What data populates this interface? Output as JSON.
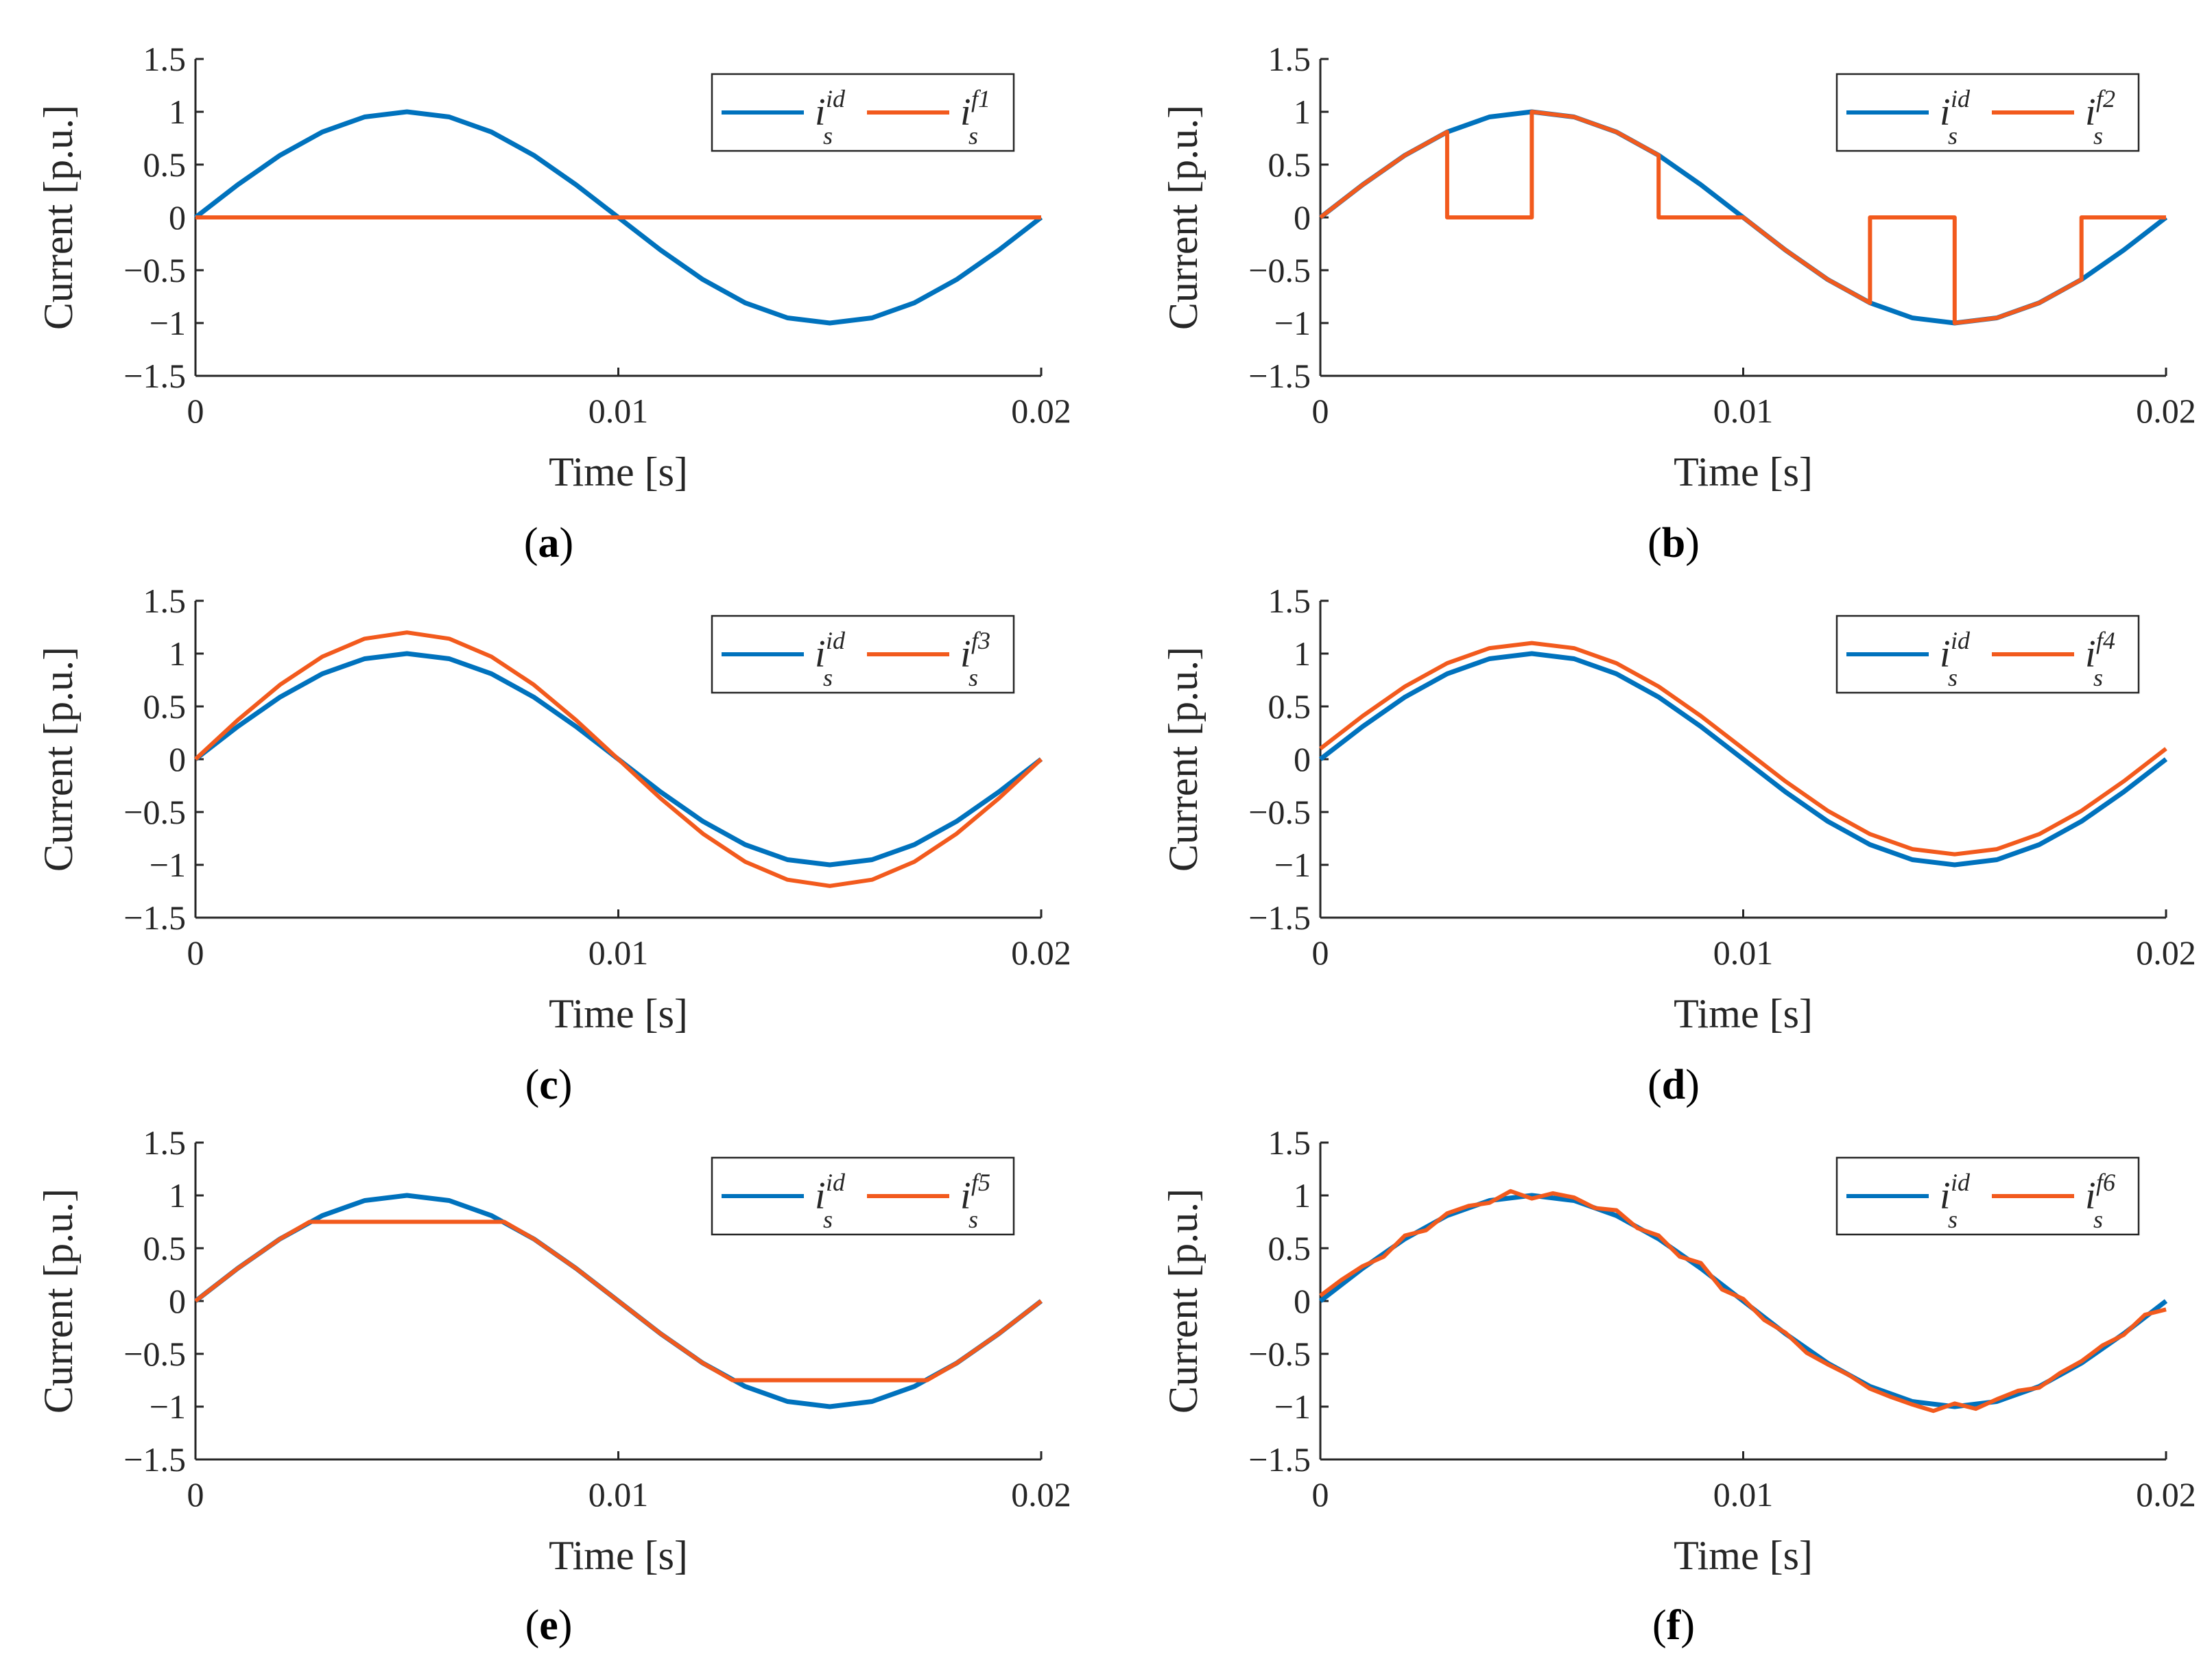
{
  "chart_data": [
    {
      "panel_label": "a",
      "type": "line",
      "xlabel": "Time [s]",
      "ylabel": "Current [p.u.]",
      "xlim": [
        0,
        0.02
      ],
      "ylim": [
        -1.5,
        1.5
      ],
      "xticks": [
        "0",
        "0.01",
        "0.02"
      ],
      "yticks": [
        "1.5",
        "1",
        "0.5",
        "0",
        "−0.5",
        "−1",
        "−1.5"
      ],
      "grid": false,
      "legend_position": "top-right",
      "colors": [
        "#0072BD",
        "#F25A1D"
      ],
      "series": [
        {
          "name": {
            "base": "i",
            "sub": "s",
            "sup": "id"
          },
          "x": [
            0,
            0.001,
            0.002,
            0.003,
            0.004,
            0.005,
            0.006,
            0.007,
            0.008,
            0.009,
            0.01,
            0.011,
            0.012,
            0.013,
            0.014,
            0.015,
            0.016,
            0.017,
            0.018,
            0.019,
            0.02
          ],
          "y": [
            0,
            0.309,
            0.588,
            0.809,
            0.951,
            1,
            0.951,
            0.809,
            0.588,
            0.309,
            0,
            -0.309,
            -0.588,
            -0.809,
            -0.951,
            -1,
            -0.951,
            -0.809,
            -0.588,
            -0.309,
            0
          ]
        },
        {
          "name": {
            "base": "i",
            "sub": "s",
            "sup": "f1"
          },
          "x": [
            0,
            0.02
          ],
          "y": [
            0,
            0
          ]
        }
      ]
    },
    {
      "panel_label": "b",
      "type": "line",
      "xlabel": "Time [s]",
      "ylabel": "Current [p.u.]",
      "xlim": [
        0,
        0.02
      ],
      "ylim": [
        -1.5,
        1.5
      ],
      "xticks": [
        "0",
        "0.01",
        "0.02"
      ],
      "yticks": [
        "1.5",
        "1",
        "0.5",
        "0",
        "−0.5",
        "−1",
        "−1.5"
      ],
      "grid": false,
      "legend_position": "top-right",
      "colors": [
        "#0072BD",
        "#F25A1D"
      ],
      "series": [
        {
          "name": {
            "base": "i",
            "sub": "s",
            "sup": "id"
          },
          "x": [
            0,
            0.001,
            0.002,
            0.003,
            0.004,
            0.005,
            0.006,
            0.007,
            0.008,
            0.009,
            0.01,
            0.011,
            0.012,
            0.013,
            0.014,
            0.015,
            0.016,
            0.017,
            0.018,
            0.019,
            0.02
          ],
          "y": [
            0,
            0.309,
            0.588,
            0.809,
            0.951,
            1,
            0.951,
            0.809,
            0.588,
            0.309,
            0,
            -0.309,
            -0.588,
            -0.809,
            -0.951,
            -1,
            -0.951,
            -0.809,
            -0.588,
            -0.309,
            0
          ]
        },
        {
          "name": {
            "base": "i",
            "sub": "s",
            "sup": "f2"
          },
          "x": [
            0,
            0.001,
            0.002,
            0.003,
            0.003,
            0.005,
            0.005,
            0.006,
            0.007,
            0.008,
            0.008,
            0.01,
            0.011,
            0.012,
            0.013,
            0.013,
            0.015,
            0.015,
            0.016,
            0.017,
            0.018,
            0.018,
            0.02
          ],
          "y": [
            0,
            0.309,
            0.588,
            0.809,
            0,
            0,
            1,
            0.951,
            0.809,
            0.588,
            0,
            0,
            -0.309,
            -0.588,
            -0.809,
            0,
            0,
            -1,
            -0.951,
            -0.809,
            -0.588,
            0,
            0
          ]
        }
      ]
    },
    {
      "panel_label": "c",
      "type": "line",
      "xlabel": "Time [s]",
      "ylabel": "Current [p.u.]",
      "xlim": [
        0,
        0.02
      ],
      "ylim": [
        -1.5,
        1.5
      ],
      "xticks": [
        "0",
        "0.01",
        "0.02"
      ],
      "yticks": [
        "1.5",
        "1",
        "0.5",
        "0",
        "−0.5",
        "−1",
        "−1.5"
      ],
      "grid": false,
      "legend_position": "top-right",
      "colors": [
        "#0072BD",
        "#F25A1D"
      ],
      "series": [
        {
          "name": {
            "base": "i",
            "sub": "s",
            "sup": "id"
          },
          "x": [
            0,
            0.001,
            0.002,
            0.003,
            0.004,
            0.005,
            0.006,
            0.007,
            0.008,
            0.009,
            0.01,
            0.011,
            0.012,
            0.013,
            0.014,
            0.015,
            0.016,
            0.017,
            0.018,
            0.019,
            0.02
          ],
          "y": [
            0,
            0.309,
            0.588,
            0.809,
            0.951,
            1,
            0.951,
            0.809,
            0.588,
            0.309,
            0,
            -0.309,
            -0.588,
            -0.809,
            -0.951,
            -1,
            -0.951,
            -0.809,
            -0.588,
            -0.309,
            0
          ]
        },
        {
          "name": {
            "base": "i",
            "sub": "s",
            "sup": "f3"
          },
          "x": [
            0,
            0.001,
            0.002,
            0.003,
            0.004,
            0.005,
            0.006,
            0.007,
            0.008,
            0.009,
            0.01,
            0.011,
            0.012,
            0.013,
            0.014,
            0.015,
            0.016,
            0.017,
            0.018,
            0.019,
            0.02
          ],
          "y": [
            0,
            0.371,
            0.705,
            0.971,
            1.141,
            1.2,
            1.141,
            0.971,
            0.705,
            0.371,
            0,
            -0.371,
            -0.705,
            -0.971,
            -1.141,
            -1.2,
            -1.141,
            -0.971,
            -0.705,
            -0.371,
            0
          ]
        }
      ]
    },
    {
      "panel_label": "d",
      "type": "line",
      "xlabel": "Time [s]",
      "ylabel": "Current [p.u.]",
      "xlim": [
        0,
        0.02
      ],
      "ylim": [
        -1.5,
        1.5
      ],
      "xticks": [
        "0",
        "0.01",
        "0.02"
      ],
      "yticks": [
        "1.5",
        "1",
        "0.5",
        "0",
        "−0.5",
        "−1",
        "−1.5"
      ],
      "grid": false,
      "legend_position": "top-right",
      "colors": [
        "#0072BD",
        "#F25A1D"
      ],
      "series": [
        {
          "name": {
            "base": "i",
            "sub": "s",
            "sup": "id"
          },
          "x": [
            0,
            0.001,
            0.002,
            0.003,
            0.004,
            0.005,
            0.006,
            0.007,
            0.008,
            0.009,
            0.01,
            0.011,
            0.012,
            0.013,
            0.014,
            0.015,
            0.016,
            0.017,
            0.018,
            0.019,
            0.02
          ],
          "y": [
            0,
            0.309,
            0.588,
            0.809,
            0.951,
            1,
            0.951,
            0.809,
            0.588,
            0.309,
            0,
            -0.309,
            -0.588,
            -0.809,
            -0.951,
            -1,
            -0.951,
            -0.809,
            -0.588,
            -0.309,
            0
          ]
        },
        {
          "name": {
            "base": "i",
            "sub": "s",
            "sup": "f4"
          },
          "x": [
            0,
            0.001,
            0.002,
            0.003,
            0.004,
            0.005,
            0.006,
            0.007,
            0.008,
            0.009,
            0.01,
            0.011,
            0.012,
            0.013,
            0.014,
            0.015,
            0.016,
            0.017,
            0.018,
            0.019,
            0.02
          ],
          "y": [
            0.1,
            0.409,
            0.688,
            0.909,
            1.051,
            1.1,
            1.051,
            0.909,
            0.688,
            0.409,
            0.1,
            -0.209,
            -0.488,
            -0.709,
            -0.851,
            -0.9,
            -0.851,
            -0.709,
            -0.488,
            -0.209,
            0.1
          ]
        }
      ]
    },
    {
      "panel_label": "e",
      "type": "line",
      "xlabel": "Time [s]",
      "ylabel": "Current [p.u.]",
      "xlim": [
        0,
        0.02
      ],
      "ylim": [
        -1.5,
        1.5
      ],
      "xticks": [
        "0",
        "0.01",
        "0.02"
      ],
      "yticks": [
        "1.5",
        "1",
        "0.5",
        "0",
        "−0.5",
        "−1",
        "−1.5"
      ],
      "grid": false,
      "legend_position": "top-right",
      "colors": [
        "#0072BD",
        "#F25A1D"
      ],
      "series": [
        {
          "name": {
            "base": "i",
            "sub": "s",
            "sup": "id"
          },
          "x": [
            0,
            0.001,
            0.002,
            0.003,
            0.004,
            0.005,
            0.006,
            0.007,
            0.008,
            0.009,
            0.01,
            0.011,
            0.012,
            0.013,
            0.014,
            0.015,
            0.016,
            0.017,
            0.018,
            0.019,
            0.02
          ],
          "y": [
            0,
            0.309,
            0.588,
            0.809,
            0.951,
            1,
            0.951,
            0.809,
            0.588,
            0.309,
            0,
            -0.309,
            -0.588,
            -0.809,
            -0.951,
            -1,
            -0.951,
            -0.809,
            -0.588,
            -0.309,
            0
          ]
        },
        {
          "name": {
            "base": "i",
            "sub": "s",
            "sup": "f5"
          },
          "x": [
            0,
            0.001,
            0.002,
            0.0027,
            0.0073,
            0.008,
            0.009,
            0.01,
            0.011,
            0.012,
            0.0127,
            0.0173,
            0.018,
            0.019,
            0.02
          ],
          "y": [
            0,
            0.309,
            0.588,
            0.75,
            0.75,
            0.588,
            0.309,
            0,
            -0.309,
            -0.588,
            -0.75,
            -0.75,
            -0.588,
            -0.309,
            0
          ]
        }
      ]
    },
    {
      "panel_label": "f",
      "type": "line",
      "xlabel": "Time [s]",
      "ylabel": "Current [p.u.]",
      "xlim": [
        0,
        0.02
      ],
      "ylim": [
        -1.5,
        1.5
      ],
      "xticks": [
        "0",
        "0.01",
        "0.02"
      ],
      "yticks": [
        "1.5",
        "1",
        "0.5",
        "0",
        "−0.5",
        "−1",
        "−1.5"
      ],
      "grid": false,
      "legend_position": "top-right",
      "colors": [
        "#0072BD",
        "#F25A1D"
      ],
      "series": [
        {
          "name": {
            "base": "i",
            "sub": "s",
            "sup": "id"
          },
          "x": [
            0,
            0.001,
            0.002,
            0.003,
            0.004,
            0.005,
            0.006,
            0.007,
            0.008,
            0.009,
            0.01,
            0.011,
            0.012,
            0.013,
            0.014,
            0.015,
            0.016,
            0.017,
            0.018,
            0.019,
            0.02
          ],
          "y": [
            0,
            0.309,
            0.588,
            0.809,
            0.951,
            1,
            0.951,
            0.809,
            0.588,
            0.309,
            0,
            -0.309,
            -0.588,
            -0.809,
            -0.951,
            -1,
            -0.951,
            -0.809,
            -0.588,
            -0.309,
            0
          ]
        },
        {
          "name": {
            "base": "i",
            "sub": "s",
            "sup": "f6"
          },
          "x": [
            0,
            0.0005,
            0.001,
            0.0015,
            0.002,
            0.0025,
            0.003,
            0.0035,
            0.004,
            0.0045,
            0.005,
            0.0055,
            0.006,
            0.0065,
            0.007,
            0.0075,
            0.008,
            0.0085,
            0.009,
            0.0095,
            0.01,
            0.0105,
            0.011,
            0.0115,
            0.012,
            0.0125,
            0.013,
            0.0135,
            0.014,
            0.0145,
            0.015,
            0.0155,
            0.016,
            0.0165,
            0.017,
            0.0175,
            0.018,
            0.0185,
            0.019,
            0.0195,
            0.02
          ],
          "y": [
            0.05,
            0.2,
            0.33,
            0.42,
            0.62,
            0.67,
            0.83,
            0.9,
            0.93,
            1.04,
            0.97,
            1.02,
            0.98,
            0.88,
            0.86,
            0.69,
            0.62,
            0.42,
            0.36,
            0.11,
            0.02,
            -0.18,
            -0.3,
            -0.49,
            -0.6,
            -0.7,
            -0.83,
            -0.91,
            -0.98,
            -1.04,
            -0.97,
            -1.02,
            -0.93,
            -0.85,
            -0.82,
            -0.68,
            -0.57,
            -0.42,
            -0.32,
            -0.13,
            -0.08
          ]
        }
      ]
    }
  ]
}
